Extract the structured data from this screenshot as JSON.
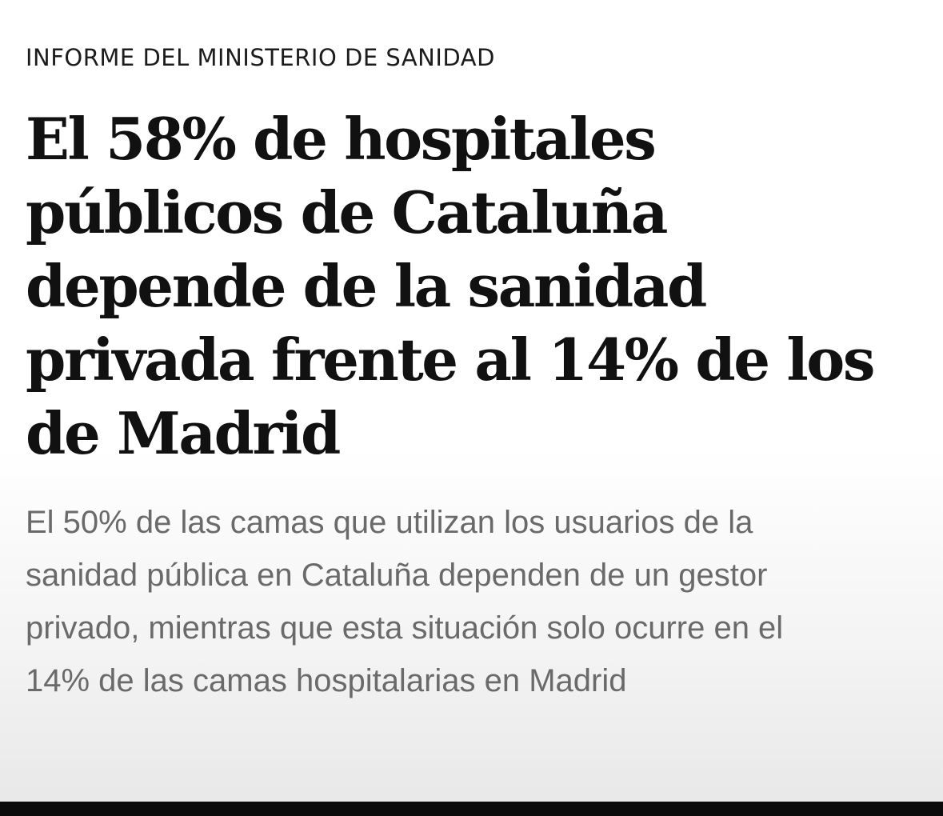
{
  "article": {
    "kicker": "INFORME DEL MINISTERIO DE SANIDAD",
    "headline_lines": [
      "El 58% de hospitales",
      "públicos de Cataluña",
      "depende de la sanidad",
      "privada frente al 14% de los",
      "de Madrid"
    ],
    "subtitle_lines": [
      "El 50% de las camas que utilizan los usuarios de la",
      "sanidad pública en Cataluña dependen de un gestor",
      "privado, mientras que esta situación solo ocurre en el",
      "14% de las camas hospitalarias en Madrid"
    ]
  }
}
